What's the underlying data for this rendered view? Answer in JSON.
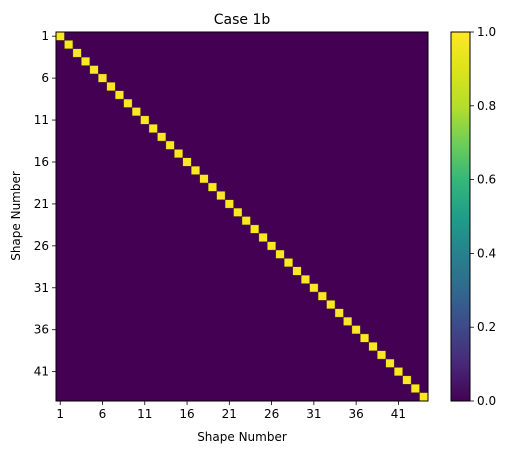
{
  "chart_data": {
    "type": "heatmap",
    "title": "Case 1b",
    "xlabel": "Shape Number",
    "ylabel": "Shape Number",
    "n": 44,
    "tick_labels": [
      "1",
      "6",
      "11",
      "16",
      "21",
      "26",
      "31",
      "36",
      "41"
    ],
    "diagonal_value": 1.0,
    "off_diagonal_value": 0.0,
    "colorbar": {
      "range": [
        0.0,
        1.0
      ],
      "tick_labels": [
        "0.0",
        "0.2",
        "0.4",
        "0.6",
        "0.8",
        "1.0"
      ]
    },
    "colormap": "viridis",
    "colors": {
      "low": "#440154",
      "high": "#fde725"
    }
  }
}
